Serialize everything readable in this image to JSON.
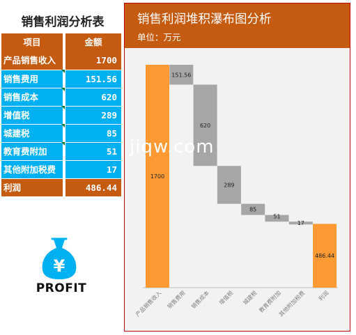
{
  "left_panel": {
    "title": "销售利润分析表",
    "table": {
      "headers": [
        "项目",
        "金额"
      ],
      "rows": [
        {
          "label": "产品销售收入",
          "value": "1700",
          "style": "orange",
          "flag": false
        },
        {
          "label": "销售费用",
          "value": "151.56",
          "style": "blue",
          "flag": true
        },
        {
          "label": "销售成本",
          "value": "620",
          "style": "blue",
          "flag": true
        },
        {
          "label": "增值税",
          "value": "289",
          "style": "blue",
          "flag": true
        },
        {
          "label": "城建税",
          "value": "85",
          "style": "blue",
          "flag": true
        },
        {
          "label": "教育费附加",
          "value": "51",
          "style": "blue",
          "flag": true
        },
        {
          "label": "其他附加税费",
          "value": "17",
          "style": "blue",
          "flag": false
        },
        {
          "label": "利润",
          "value": "486.44",
          "style": "orange",
          "flag": false
        }
      ]
    },
    "profit_label": "PROFIT",
    "icon": "money-bag-yen-icon",
    "icon_symbol": "¥"
  },
  "watermark": "jiqw.com",
  "colors": {
    "orange_header": "#c55a11",
    "blue_row": "#00b0f0",
    "bar_total": "#ff9933",
    "bar_step": "#a6a6a6",
    "panel_bg": "#f2f2f2",
    "panel_border": "#c00000"
  },
  "chart_data": {
    "type": "bar",
    "subtype": "waterfall",
    "title": "销售利润堆积瀑布图分析",
    "subtitle": "单位：万元",
    "categories": [
      "产品销售收入",
      "销售费用",
      "销售成本",
      "增值税",
      "城建税",
      "教育费附加",
      "其他附加税费",
      "利润"
    ],
    "values": [
      1700,
      151.56,
      620,
      289,
      85,
      51,
      17,
      486.44
    ],
    "labels": [
      "1700",
      "151.56",
      "620",
      "289",
      "85",
      "51",
      "17",
      "486.44"
    ],
    "bar_kind": [
      "total",
      "step",
      "step",
      "step",
      "step",
      "step",
      "step",
      "total"
    ],
    "ylim": [
      0,
      1700
    ],
    "grid": false,
    "legend": "none"
  }
}
